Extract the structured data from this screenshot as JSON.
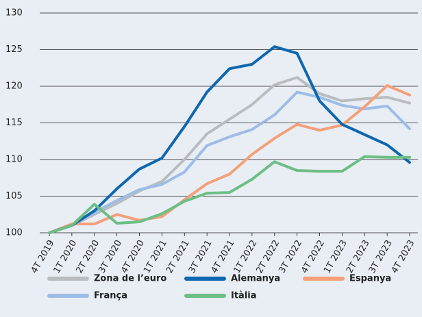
{
  "chart_data": {
    "type": "line",
    "categories": [
      "4T 2019",
      "1T 2020",
      "2T 2020",
      "3T 2020",
      "4T 2020",
      "1T 2021",
      "2T 2021",
      "3T 2021",
      "4T 2021",
      "1T 2022",
      "2T 2022",
      "3T 2022",
      "4T 2022",
      "1T 2023",
      "2T 2023",
      "3T 2023",
      "4T 2023"
    ],
    "series": [
      {
        "name": "Zona de l’euro",
        "color": "#b9bdbf",
        "values": [
          100,
          101,
          102.5,
          104,
          105.7,
          107,
          110,
          113.5,
          115.5,
          117.5,
          120.2,
          121.2,
          119,
          118,
          118.3,
          118.5,
          117.7
        ]
      },
      {
        "name": "Alemanya",
        "color": "#0e67b0",
        "values": [
          100,
          101,
          103,
          106,
          108.7,
          110.2,
          114.5,
          119.2,
          122.4,
          123,
          125.4,
          124.5,
          118,
          114.8,
          113.4,
          112,
          109.6
        ]
      },
      {
        "name": "Espanya",
        "color": "#f4a07a",
        "values": [
          100,
          101.2,
          101.2,
          102.5,
          101.7,
          102.2,
          104.5,
          106.7,
          108,
          110.7,
          112.9,
          114.8,
          114,
          114.7,
          117.2,
          120.1,
          118.8
        ]
      },
      {
        "name": "França",
        "color": "#9dbde6",
        "values": [
          100,
          101,
          102.8,
          104.4,
          105.9,
          106.6,
          108.3,
          111.9,
          113.1,
          114.1,
          116.1,
          119.2,
          118.5,
          117.4,
          116.9,
          117.3,
          114.2
        ]
      },
      {
        "name": "Itàlia",
        "color": "#6cbf84",
        "values": [
          100,
          101,
          103.9,
          101.3,
          101.5,
          102.6,
          104.3,
          105.4,
          105.5,
          107.3,
          109.7,
          108.5,
          108.4,
          108.4,
          110.4,
          110.3,
          110.3
        ]
      }
    ],
    "ylim": [
      100,
      130
    ],
    "yticks": [
      100,
      105,
      110,
      115,
      120,
      125,
      130
    ],
    "grid": true
  }
}
